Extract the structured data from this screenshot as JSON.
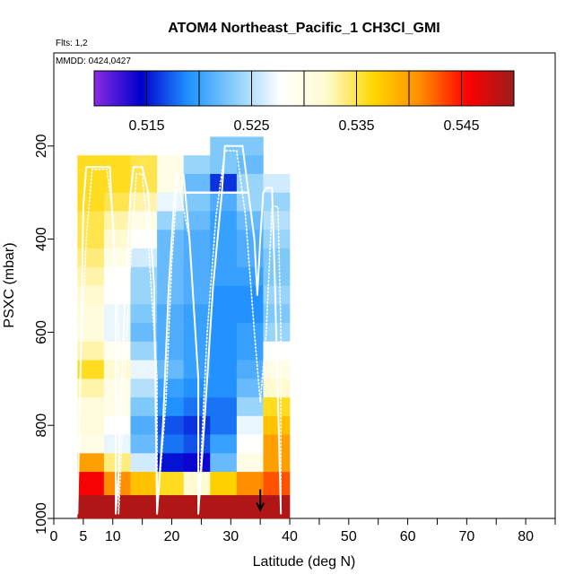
{
  "chart_data": {
    "type": "heatmap",
    "title": "ATOM4 Northeast_Pacific_1 CH3Cl_GMI",
    "annotations": [
      "Flts: 1,2",
      "MMDD: 0424,0427"
    ],
    "xlabel": "Latitude (deg N)",
    "ylabel": "PSXC (mbar)",
    "xlim": [
      0,
      85
    ],
    "ylim": [
      1000,
      0
    ],
    "y_reversed": true,
    "x_ticks": [
      0,
      5,
      10,
      20,
      30,
      40,
      50,
      60,
      70,
      80
    ],
    "y_ticks": [
      200,
      400,
      600,
      800,
      1000
    ],
    "colorbar": {
      "range": [
        0.51,
        0.55
      ],
      "ticks": [
        0.515,
        0.525,
        0.535,
        0.545
      ],
      "tick_labels": [
        "0.515",
        "0.525",
        "0.535",
        "0.545"
      ],
      "colors": [
        "#8a2be2",
        "#0000cd",
        "#1e90ff",
        "#87cefa",
        "#ffffff",
        "#fffacd",
        "#ffd700",
        "#ff8c00",
        "#ff0000",
        "#9b1c1c"
      ]
    },
    "heatmap": {
      "lat_bins": [
        [
          4,
          8.5
        ],
        [
          8.5,
          13
        ],
        [
          13,
          17.5
        ],
        [
          17.5,
          22
        ],
        [
          22,
          26.5
        ],
        [
          26.5,
          31
        ],
        [
          31,
          35.5
        ],
        [
          35.5,
          40
        ]
      ],
      "pressure_bins": [
        [
          180,
          220
        ],
        [
          220,
          260
        ],
        [
          260,
          300
        ],
        [
          300,
          340
        ],
        [
          340,
          380
        ],
        [
          380,
          420
        ],
        [
          420,
          460
        ],
        [
          460,
          500
        ],
        [
          500,
          540
        ],
        [
          540,
          580
        ],
        [
          580,
          620
        ],
        [
          620,
          660
        ],
        [
          660,
          700
        ],
        [
          700,
          740
        ],
        [
          740,
          780
        ],
        [
          780,
          820
        ],
        [
          820,
          860
        ],
        [
          860,
          900
        ],
        [
          900,
          950
        ],
        [
          950,
          1000
        ]
      ],
      "values": [
        [
          null,
          null,
          null,
          null,
          null,
          0.523,
          0.523,
          null
        ],
        [
          0.536,
          0.536,
          0.535,
          0.53,
          0.524,
          0.523,
          0.522,
          null
        ],
        [
          0.536,
          0.536,
          0.535,
          0.53,
          0.522,
          0.516,
          0.524,
          0.526
        ],
        [
          0.536,
          0.535,
          0.533,
          0.527,
          0.523,
          0.521,
          0.524,
          0.524
        ],
        [
          0.535,
          0.533,
          0.53,
          0.524,
          0.522,
          0.52,
          0.522,
          0.525
        ],
        [
          0.535,
          0.532,
          0.528,
          0.522,
          0.521,
          0.52,
          0.521,
          0.524
        ],
        [
          0.534,
          0.53,
          0.526,
          0.522,
          0.521,
          0.52,
          0.521,
          0.523
        ],
        [
          0.533,
          0.528,
          0.524,
          0.522,
          0.521,
          0.52,
          0.52,
          0.523
        ],
        [
          0.532,
          0.528,
          0.524,
          0.522,
          0.521,
          0.519,
          0.519,
          0.524
        ],
        [
          0.531,
          0.527,
          0.523,
          0.521,
          0.52,
          0.519,
          0.519,
          0.523
        ],
        [
          0.531,
          0.527,
          0.522,
          0.521,
          0.52,
          0.519,
          0.52,
          0.524
        ],
        [
          0.533,
          0.529,
          0.524,
          0.521,
          0.52,
          0.519,
          0.52,
          0.528
        ],
        [
          0.536,
          0.532,
          0.527,
          0.522,
          0.52,
          0.519,
          0.521,
          0.53
        ],
        [
          0.533,
          0.53,
          0.525,
          0.52,
          0.519,
          0.519,
          0.522,
          0.532
        ],
        [
          0.531,
          0.53,
          0.523,
          0.519,
          0.518,
          0.518,
          0.524,
          0.536
        ],
        [
          0.531,
          0.528,
          0.521,
          0.517,
          0.516,
          0.518,
          0.527,
          0.538
        ],
        [
          0.53,
          0.527,
          0.522,
          0.518,
          0.517,
          0.52,
          0.528,
          0.54
        ],
        [
          0.54,
          0.534,
          0.526,
          0.515,
          0.514,
          0.522,
          0.53,
          0.54
        ],
        [
          0.546,
          0.541,
          0.538,
          0.536,
          0.532,
          0.537,
          0.541,
          0.543
        ],
        [
          0.549,
          0.549,
          0.549,
          0.549,
          0.549,
          0.549,
          0.549,
          0.549
        ]
      ]
    },
    "flight_tracks": [
      {
        "style": "solid",
        "points": [
          [
            4,
            990
          ],
          [
            4.5,
            700
          ],
          [
            5,
            330
          ],
          [
            5.5,
            245
          ],
          [
            9.5,
            245
          ],
          [
            10.5,
            500
          ],
          [
            10.5,
            990
          ],
          [
            11,
            900
          ],
          [
            12,
            550
          ],
          [
            13,
            300
          ],
          [
            13.5,
            245
          ],
          [
            15,
            245
          ],
          [
            16,
            300
          ],
          [
            17,
            500
          ],
          [
            17.5,
            990
          ],
          [
            18.5,
            800
          ],
          [
            19.5,
            500
          ],
          [
            20.5,
            300
          ],
          [
            21,
            260
          ],
          [
            22,
            262
          ],
          [
            23,
            400
          ],
          [
            24.5,
            700
          ],
          [
            24.5,
            990
          ],
          [
            25.5,
            800
          ],
          [
            27,
            500
          ],
          [
            28.5,
            300
          ],
          [
            29,
            200
          ],
          [
            32,
            200
          ],
          [
            33,
            300
          ],
          [
            34,
            400
          ],
          [
            34.5,
            520
          ],
          [
            35,
            400
          ],
          [
            35.5,
            300
          ],
          [
            36,
            290
          ],
          [
            37,
            290
          ],
          [
            37.5,
            500
          ],
          [
            38.5,
            990
          ]
        ]
      },
      {
        "style": "dotted",
        "points": [
          [
            4,
            990
          ],
          [
            4.5,
            700
          ],
          [
            5.5,
            400
          ],
          [
            6.5,
            250
          ],
          [
            9,
            250
          ],
          [
            10,
            350
          ],
          [
            11,
            600
          ],
          [
            11,
            990
          ],
          [
            12,
            700
          ],
          [
            13,
            450
          ],
          [
            14,
            260
          ],
          [
            15,
            260
          ],
          [
            16,
            400
          ],
          [
            17.5,
            700
          ],
          [
            17.5,
            990
          ],
          [
            19,
            750
          ],
          [
            20,
            450
          ],
          [
            21,
            270
          ],
          [
            23,
            400
          ],
          [
            24.5,
            700
          ],
          [
            24.5,
            990
          ],
          [
            26,
            600
          ],
          [
            27.5,
            350
          ],
          [
            29,
            210
          ],
          [
            31,
            210
          ],
          [
            32.5,
            350
          ],
          [
            34,
            600
          ],
          [
            35,
            750
          ],
          [
            36,
            600
          ],
          [
            37,
            330
          ],
          [
            38,
            330
          ],
          [
            38.5,
            600
          ],
          [
            38.5,
            990
          ]
        ]
      }
    ],
    "flat_line": {
      "lat": [
        22,
        33
      ],
      "pressure": [
        300,
        300
      ]
    },
    "marker": {
      "lat": 35,
      "pressure": 980,
      "shape": "arrow-down"
    }
  }
}
